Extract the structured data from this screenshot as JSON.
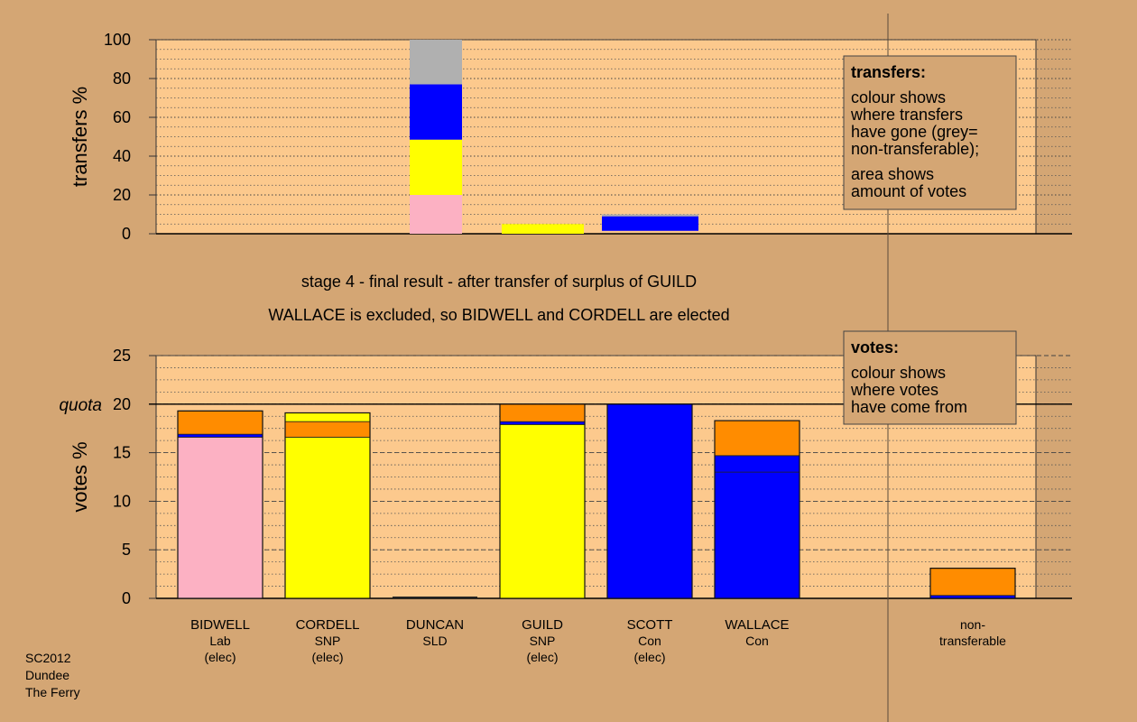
{
  "colors": {
    "background": "#d4a674",
    "panel": "#fcc98d",
    "Lab": "#fcb1c3",
    "SNP": "#ffff00",
    "Con": "#0000ff",
    "non-transferable": "#b0b0b0",
    "transfers_in": "#ff8c00"
  },
  "captions": {
    "stage": "stage 4 - final result - after transfer of surplus of GUILD",
    "outcome": "WALLACE is excluded, so BIDWELL and CORDELL are elected"
  },
  "footer": [
    "SC2012",
    "Dundee",
    "The Ferry"
  ],
  "legend_transfers": {
    "title": "transfers:",
    "text1": [
      "colour shows",
      "where transfers",
      "have gone (grey=",
      "non-transferable);"
    ],
    "text2": [
      "area shows",
      "amount of votes"
    ]
  },
  "legend_votes": {
    "title": "votes:",
    "text1": [
      "colour shows",
      "where votes",
      "have come from"
    ]
  },
  "chart_data": [
    {
      "type": "bar",
      "stacked": true,
      "ylabel": "transfers %",
      "ylim": [
        0,
        100
      ],
      "yticks": [
        0,
        20,
        40,
        60,
        80,
        100
      ],
      "bars": [
        {
          "column": 2,
          "width": "full",
          "segments": [
            {
              "from": 0,
              "to": 20,
              "color": "Lab"
            },
            {
              "from": 20,
              "to": 48.5,
              "color": "SNP"
            },
            {
              "from": 48.5,
              "to": 77,
              "color": "Con"
            },
            {
              "from": 77,
              "to": 100,
              "color": "non-transferable"
            }
          ]
        },
        {
          "column": 3,
          "width": "full",
          "segments": [
            {
              "from": 0,
              "to": 5,
              "color": "SNP"
            }
          ]
        },
        {
          "column": 4,
          "width": "full",
          "segments": [
            {
              "from": 1.5,
              "to": 9,
              "color": "Con"
            },
            {
              "from": 9,
              "to": 10,
              "color": "non-transferable"
            }
          ]
        }
      ]
    },
    {
      "type": "bar",
      "stacked": true,
      "ylabel": "votes %",
      "ylim": [
        0,
        25
      ],
      "yticks": [
        0,
        5,
        10,
        15,
        20,
        25
      ],
      "quota": {
        "value": 20,
        "label": "quota"
      },
      "categories": [
        [
          "BIDWELL",
          "Lab",
          "(elec)"
        ],
        [
          "CORDELL",
          "SNP",
          "(elec)"
        ],
        [
          "DUNCAN",
          "SLD"
        ],
        [
          "GUILD",
          "SNP",
          "(elec)"
        ],
        [
          "SCOTT",
          "Con",
          "(elec)"
        ],
        [
          "WALLACE",
          "Con"
        ],
        [
          "non-",
          "transferable"
        ]
      ],
      "bars": [
        {
          "column": 0,
          "segments": [
            {
              "from": 0,
              "to": 16.6,
              "color": "Lab"
            },
            {
              "from": 16.6,
              "to": 16.9,
              "color": "Con"
            },
            {
              "from": 16.9,
              "to": 19.3,
              "color": "transfers_in"
            }
          ]
        },
        {
          "column": 1,
          "segments": [
            {
              "from": 0,
              "to": 16.6,
              "color": "SNP"
            },
            {
              "from": 16.6,
              "to": 18.2,
              "color": "transfers_in"
            },
            {
              "from": 18.2,
              "to": 19.1,
              "color": "SNP"
            }
          ]
        },
        {
          "column": 3,
          "segments": [
            {
              "from": 0,
              "to": 17.9,
              "color": "SNP"
            },
            {
              "from": 17.9,
              "to": 18.2,
              "color": "Con"
            },
            {
              "from": 18.2,
              "to": 20,
              "color": "transfers_in"
            }
          ]
        },
        {
          "column": 4,
          "segments": [
            {
              "from": 0,
              "to": 20,
              "color": "Con"
            }
          ]
        },
        {
          "column": 5,
          "segments": [
            {
              "from": 0,
              "to": 13,
              "color": "Con"
            },
            {
              "from": 13,
              "to": 14.7,
              "color": "Con"
            },
            {
              "from": 14.7,
              "to": 18.3,
              "color": "transfers_in"
            }
          ]
        },
        {
          "column": 6,
          "segments": [
            {
              "from": 0,
              "to": 0.3,
              "color": "Con"
            },
            {
              "from": 0.3,
              "to": 3.1,
              "color": "transfers_in"
            }
          ]
        }
      ]
    }
  ]
}
